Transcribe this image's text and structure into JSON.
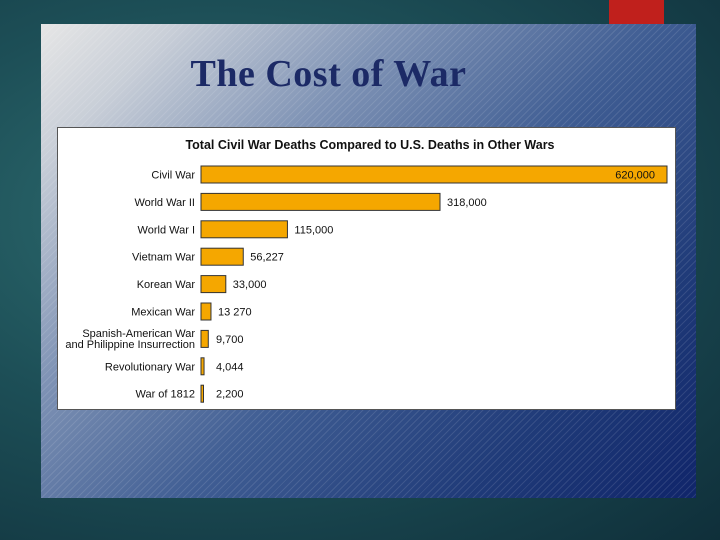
{
  "slide": {
    "title": "The Cost of War"
  },
  "chart_data": {
    "type": "bar",
    "orientation": "horizontal",
    "title": "Total Civil War Deaths Compared to U.S. Deaths in Other Wars",
    "xlabel": "",
    "ylabel": "",
    "xlim": [
      0,
      620000
    ],
    "grid": false,
    "legend": "none",
    "bar_color": "#f5a700",
    "categories": [
      "Civil War",
      "World War II",
      "World War I",
      "Vietnam War",
      "Korean War",
      "Mexican War",
      "Spanish-American War\nand Philippine Insurrection",
      "Revolutionary War",
      "War of 1812"
    ],
    "values": [
      620000,
      318000,
      115000,
      56227,
      33000,
      13270,
      9700,
      4044,
      2200
    ],
    "value_labels": [
      "620,000",
      "318,000",
      "115,000",
      "56,227",
      "33,000",
      "13 270",
      "9,700",
      "4,044",
      "2,200"
    ]
  }
}
